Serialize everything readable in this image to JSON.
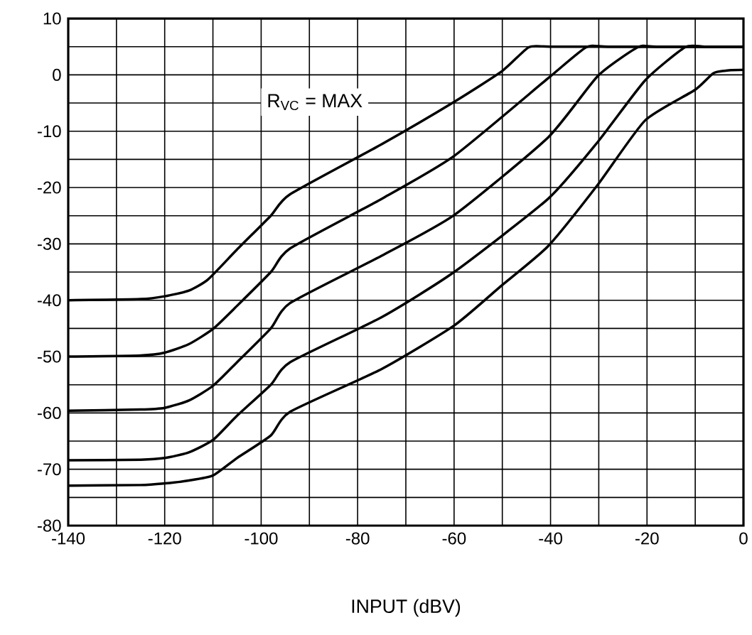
{
  "chart_data": {
    "type": "line",
    "xlabel": "INPUT (dBV)",
    "annotations": [
      "R$_{VC}$ = MAX"
    ],
    "xlim": [
      -140,
      0
    ],
    "ylim": [
      -80,
      10
    ],
    "xticks": [
      -140,
      -120,
      -100,
      -80,
      -60,
      -40,
      -20,
      0
    ],
    "yticks": [
      10,
      0,
      -10,
      -20,
      -30,
      -40,
      -50,
      -60,
      -70,
      -80
    ],
    "grid": true,
    "marker": "none",
    "line_style": "solid",
    "series": [
      {
        "color": "#000000",
        "x": [
          -140,
          -125,
          -120,
          -115,
          -111,
          -105,
          -98,
          -94,
          -75,
          -60,
          -50,
          -44.5,
          -40,
          -20,
          0
        ],
        "values": [
          -40,
          -39.8,
          -39.3,
          -38.3,
          -36.3,
          -31,
          -25,
          -21.2,
          -12.3,
          -4.8,
          0.7,
          4.9,
          5,
          5,
          5
        ]
      },
      {
        "color": "#000000",
        "x": [
          -140,
          -125,
          -120,
          -115,
          -110,
          -105,
          -98,
          -94,
          -75,
          -60,
          -40.5,
          -32.6,
          -28,
          -10,
          0
        ],
        "values": [
          -50,
          -49.8,
          -49.3,
          -47.8,
          -45.1,
          -41,
          -35,
          -30.8,
          -22,
          -14.4,
          -0.6,
          4.9,
          5,
          5,
          5
        ]
      },
      {
        "color": "#000000",
        "x": [
          -140,
          -125,
          -120,
          -115,
          -110,
          -105,
          -98,
          -94,
          -75,
          -60,
          -40.5,
          -30.2,
          -21.9,
          -18,
          0
        ],
        "values": [
          -59.6,
          -59.4,
          -59.1,
          -57.8,
          -55.2,
          -51,
          -45,
          -40.5,
          -32.1,
          -24.9,
          -11.1,
          -0.2,
          4.9,
          5,
          5
        ]
      },
      {
        "color": "#000000",
        "x": [
          -140,
          -125,
          -120,
          -115,
          -110,
          -105,
          -98,
          -94,
          -75,
          -60,
          -40.5,
          -30.2,
          -20.4,
          -12.1,
          -8,
          0
        ],
        "values": [
          -68.4,
          -68.3,
          -68,
          -67,
          -64.8,
          -60.5,
          -55,
          -51,
          -43,
          -35,
          -22,
          -11.9,
          -1,
          4.9,
          5,
          5
        ]
      },
      {
        "color": "#000000",
        "x": [
          -140,
          -125,
          -120,
          -115,
          -110,
          -105,
          -98,
          -94,
          -75,
          -60,
          -50.3,
          -40.5,
          -30.2,
          -20.4,
          -10.1,
          -6.2,
          -3,
          0
        ],
        "values": [
          -72.9,
          -72.8,
          -72.5,
          -72,
          -71.1,
          -68,
          -64,
          -59.8,
          -52.2,
          -44.5,
          -37.5,
          -30.4,
          -19.5,
          -8.1,
          -2.7,
          0.3,
          0.8,
          0.9
        ]
      }
    ]
  }
}
